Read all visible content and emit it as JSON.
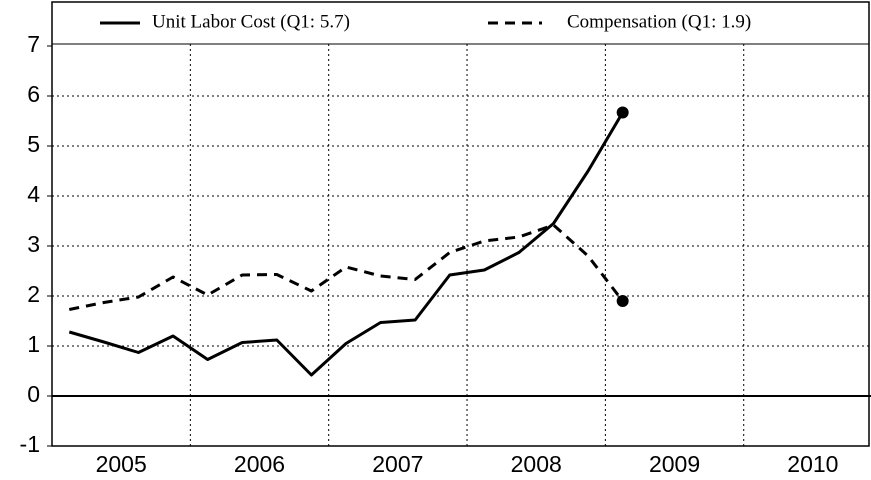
{
  "chart_data": {
    "type": "line",
    "x": [
      2005.125,
      2005.375,
      2005.625,
      2005.875,
      2006.125,
      2006.375,
      2006.625,
      2006.875,
      2007.125,
      2007.375,
      2007.625,
      2007.875,
      2008.125,
      2008.375,
      2008.625,
      2008.875,
      2009.125
    ],
    "series": [
      {
        "name": "Unit Labor Cost (Q1: 5.7)",
        "color": "#000000",
        "dash": false,
        "values": [
          1.28,
          1.08,
          0.87,
          1.2,
          0.73,
          1.07,
          1.12,
          0.42,
          1.05,
          1.47,
          1.52,
          2.42,
          2.52,
          2.87,
          3.45,
          4.5,
          5.67
        ]
      },
      {
        "name": "Compensation (Q1: 1.9)",
        "color": "#000000",
        "dash": true,
        "values": [
          1.73,
          1.87,
          1.98,
          2.38,
          2.02,
          2.42,
          2.43,
          2.1,
          2.58,
          2.4,
          2.33,
          2.87,
          3.1,
          3.18,
          3.42,
          2.8,
          1.9
        ]
      }
    ],
    "xlim": [
      2005,
      2010.92
    ],
    "xticks": [
      2006,
      2007,
      2008,
      2009,
      2010
    ],
    "xtick_labels": [
      {
        "value": 2005.5,
        "label": "2005"
      },
      {
        "value": 2006.5,
        "label": "2006"
      },
      {
        "value": 2007.5,
        "label": "2007"
      },
      {
        "value": 2008.5,
        "label": "2008"
      },
      {
        "value": 2009.5,
        "label": "2009"
      },
      {
        "value": 2010.5,
        "label": "2010"
      }
    ],
    "ylim": [
      -1,
      7.88
    ],
    "yticks": [
      -1,
      0,
      1,
      2,
      3,
      4,
      5,
      6,
      7
    ],
    "grid": true
  }
}
